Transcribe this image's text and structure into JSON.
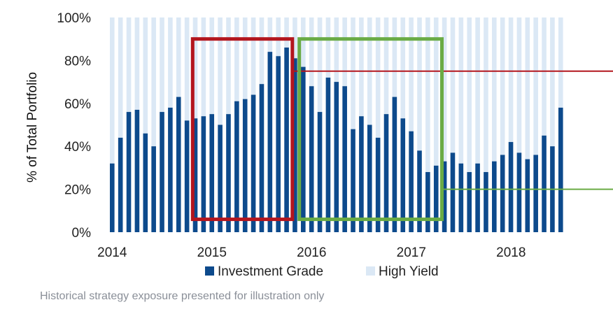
{
  "footnote": "Historical strategy exposure presented for illustration only",
  "colors": {
    "investment_grade": "#0d4a8c",
    "high_yield": "#dbe8f5",
    "red_box": "#b3161e",
    "green_box": "#6aab45"
  },
  "chart_data": {
    "type": "bar",
    "stacked": true,
    "ylabel": "% of Total Portfolio",
    "ylim": [
      0,
      100
    ],
    "yticks": [
      "0%",
      "20%",
      "40%",
      "60%",
      "80%",
      "100%"
    ],
    "ytick_values": [
      0,
      20,
      40,
      60,
      80,
      100
    ],
    "x_start": 2014.0,
    "x_step": 0.0833,
    "xticks": [
      {
        "label": "2014",
        "value": 2014
      },
      {
        "label": "2015",
        "value": 2015
      },
      {
        "label": "2016",
        "value": 2016
      },
      {
        "label": "2017",
        "value": 2017
      },
      {
        "label": "2018",
        "value": 2018
      }
    ],
    "legend": {
      "placement": "bottom",
      "entries": [
        "Investment Grade",
        "High Yield"
      ]
    },
    "series": [
      {
        "name": "Investment Grade",
        "values": [
          32,
          44,
          56,
          57,
          46,
          40,
          56,
          58,
          63,
          52,
          53,
          54,
          55,
          50,
          55,
          61,
          62,
          64,
          69,
          84,
          82,
          86,
          81,
          77,
          68,
          56,
          72,
          70,
          68,
          48,
          54,
          50,
          44,
          55,
          63,
          53,
          47,
          38,
          28,
          31,
          33,
          37,
          32,
          28,
          32,
          28,
          33,
          36,
          42,
          37,
          34,
          36,
          45,
          40,
          58
        ]
      },
      {
        "name": "High Yield",
        "values": [
          68,
          56,
          44,
          43,
          54,
          60,
          44,
          42,
          37,
          48,
          47,
          46,
          45,
          50,
          45,
          39,
          38,
          36,
          31,
          16,
          18,
          14,
          19,
          23,
          32,
          44,
          28,
          30,
          32,
          52,
          46,
          50,
          56,
          45,
          37,
          47,
          53,
          62,
          72,
          69,
          67,
          63,
          68,
          72,
          68,
          72,
          67,
          64,
          58,
          63,
          66,
          64,
          55,
          60,
          42
        ]
      }
    ],
    "annotations": [
      {
        "type": "box",
        "color": "red",
        "x_start": 2014.83,
        "x_end": 2015.83,
        "y_start": 6,
        "y_end": 90
      },
      {
        "type": "hline",
        "color": "red",
        "y": 75,
        "x_from": 2015.83
      },
      {
        "type": "box",
        "color": "green",
        "x_start": 2015.9,
        "x_end": 2017.33,
        "y_start": 6,
        "y_end": 90
      },
      {
        "type": "hline",
        "color": "green",
        "y": 20,
        "x_from": 2017.33
      }
    ]
  }
}
